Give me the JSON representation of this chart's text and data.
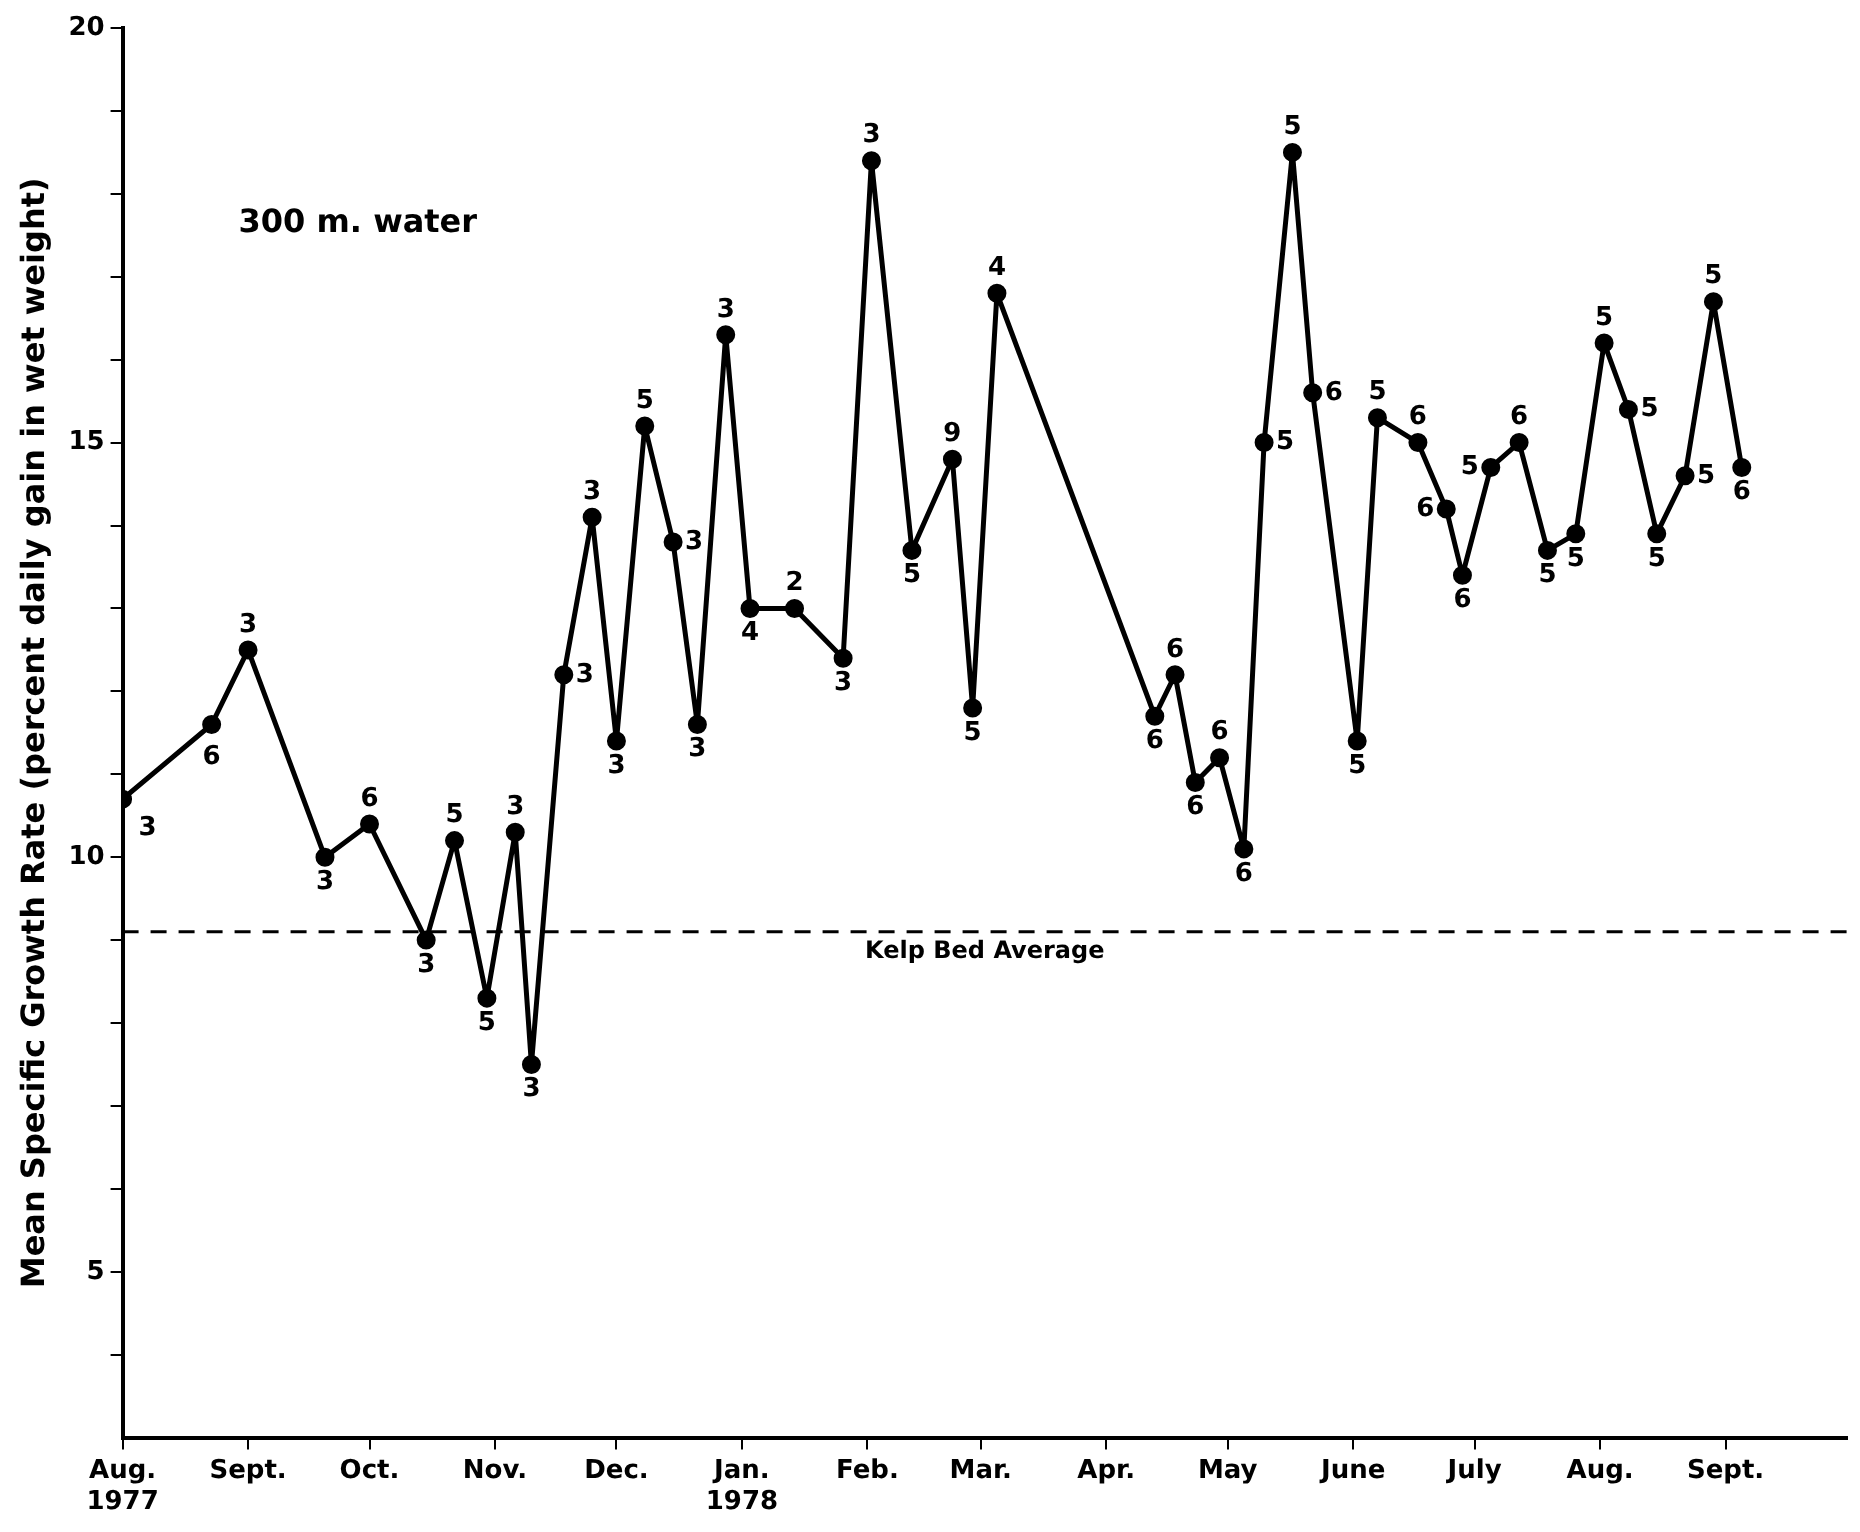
{
  "chart_data": {
    "type": "line",
    "ylabel": "Mean Specific Growth Rate (percent daily gain in wet weight)",
    "x": [
      "1977-08-01",
      "1977-08-23",
      "1977-09-01",
      "1977-09-20",
      "1977-10-01",
      "1977-10-15",
      "1977-10-22",
      "1977-10-30",
      "1977-11-06",
      "1977-11-10",
      "1977-11-18",
      "1977-11-25",
      "1977-12-01",
      "1977-12-08",
      "1977-12-15",
      "1977-12-21",
      "1977-12-28",
      "1978-01-03",
      "1978-01-14",
      "1978-01-26",
      "1978-02-02",
      "1978-02-12",
      "1978-02-22",
      "1978-02-27",
      "1978-03-05",
      "1978-04-13",
      "1978-04-18",
      "1978-04-23",
      "1978-04-29",
      "1978-05-05",
      "1978-05-10",
      "1978-05-17",
      "1978-05-22",
      "1978-06-02",
      "1978-06-07",
      "1978-06-17",
      "1978-06-24",
      "1978-06-28",
      "1978-07-05",
      "1978-07-12",
      "1978-07-19",
      "1978-07-26",
      "1978-08-02",
      "1978-08-08",
      "1978-08-15",
      "1978-08-22",
      "1978-08-29",
      "1978-09-05"
    ],
    "series": [
      {
        "color": "#000000",
        "values": [
          10.7,
          11.6,
          12.5,
          10.0,
          10.4,
          9.0,
          10.2,
          8.3,
          10.3,
          7.5,
          12.2,
          14.1,
          11.4,
          15.2,
          13.8,
          11.6,
          16.3,
          13.0,
          13.0,
          12.4,
          18.4,
          13.7,
          14.8,
          11.8,
          16.8,
          11.7,
          12.2,
          10.9,
          11.2,
          10.1,
          15.0,
          18.5,
          15.6,
          11.4,
          15.3,
          15.0,
          14.2,
          13.4,
          14.7,
          15.0,
          13.7,
          13.9,
          16.2,
          15.4,
          13.9,
          14.6,
          16.7,
          14.7
        ]
      }
    ],
    "annotations": [
      "300 m. water",
      {
        "text": "3",
        "x": "1977-08-01",
        "y": 10.7
      },
      {
        "text": "6",
        "x": "1977-08-23",
        "y": 11.6
      },
      {
        "text": "3",
        "x": "1977-09-01",
        "y": 12.5
      },
      {
        "text": "3",
        "x": "1977-09-20",
        "y": 10.0
      },
      {
        "text": "6",
        "x": "1977-10-01",
        "y": 10.4
      },
      {
        "text": "3",
        "x": "1977-10-15",
        "y": 9.0
      },
      {
        "text": "5",
        "x": "1977-10-22",
        "y": 10.2
      },
      {
        "text": "5",
        "x": "1977-10-30",
        "y": 8.3
      },
      {
        "text": "3",
        "x": "1977-11-06",
        "y": 10.3
      },
      {
        "text": "3",
        "x": "1977-11-10",
        "y": 7.5
      },
      {
        "text": "3",
        "x": "1977-11-18",
        "y": 12.2
      },
      {
        "text": "3",
        "x": "1977-11-25",
        "y": 14.1
      },
      {
        "text": "3",
        "x": "1977-12-01",
        "y": 11.4
      },
      {
        "text": "5",
        "x": "1977-12-08",
        "y": 15.2
      },
      {
        "text": "3",
        "x": "1977-12-15",
        "y": 13.8
      },
      {
        "text": "3",
        "x": "1977-12-21",
        "y": 11.6
      },
      {
        "text": "3",
        "x": "1977-12-28",
        "y": 16.3
      },
      {
        "text": "4",
        "x": "1978-01-03",
        "y": 13.0
      },
      {
        "text": "2",
        "x": "1978-01-14",
        "y": 13.0
      },
      {
        "text": "3",
        "x": "1978-01-26",
        "y": 12.4
      },
      {
        "text": "3",
        "x": "1978-02-02",
        "y": 18.4
      },
      {
        "text": "5",
        "x": "1978-02-12",
        "y": 13.7
      },
      {
        "text": "9",
        "x": "1978-02-22",
        "y": 14.8
      },
      {
        "text": "5",
        "x": "1978-02-27",
        "y": 11.8
      },
      {
        "text": "4",
        "x": "1978-03-05",
        "y": 16.8
      },
      {
        "text": "6",
        "x": "1978-04-13",
        "y": 11.7
      },
      {
        "text": "6",
        "x": "1978-04-18",
        "y": 12.2
      },
      {
        "text": "6",
        "x": "1978-04-23",
        "y": 10.9
      },
      {
        "text": "6",
        "x": "1978-04-29",
        "y": 11.2
      },
      {
        "text": "6",
        "x": "1978-05-05",
        "y": 10.1
      },
      {
        "text": "5",
        "x": "1978-05-10",
        "y": 15.0
      },
      {
        "text": "5",
        "x": "1978-05-17",
        "y": 18.5
      },
      {
        "text": "6",
        "x": "1978-05-22",
        "y": 15.6
      },
      {
        "text": "5",
        "x": "1978-06-02",
        "y": 11.4
      },
      {
        "text": "5",
        "x": "1978-06-07",
        "y": 15.3
      },
      {
        "text": "6",
        "x": "1978-06-17",
        "y": 15.0
      },
      {
        "text": "6",
        "x": "1978-06-24",
        "y": 14.2
      },
      {
        "text": "6",
        "x": "1978-06-28",
        "y": 13.4
      },
      {
        "text": "5",
        "x": "1978-07-05",
        "y": 14.7
      },
      {
        "text": "6",
        "x": "1978-07-12",
        "y": 15.0
      },
      {
        "text": "5",
        "x": "1978-07-19",
        "y": 13.7
      },
      {
        "text": "5",
        "x": "1978-07-26",
        "y": 13.9
      },
      {
        "text": "5",
        "x": "1978-08-02",
        "y": 16.2
      },
      {
        "text": "5",
        "x": "1978-08-08",
        "y": 15.4
      },
      {
        "text": "5",
        "x": "1978-08-15",
        "y": 13.9
      },
      {
        "text": "5",
        "x": "1978-08-22",
        "y": 14.6
      },
      {
        "text": "5",
        "x": "1978-08-29",
        "y": 16.7
      },
      {
        "text": "6",
        "x": "1978-09-05",
        "y": 14.7
      }
    ],
    "ref_lines": [
      {
        "axis": "y",
        "value": 9.1,
        "label": "Kelp Bed Average",
        "line_style": "dashed",
        "color": "#000000"
      }
    ],
    "xlim": [
      "1977-08-01",
      "1978-10-01"
    ],
    "xticks": [
      {
        "value": "1977-08-01",
        "label": "Aug.\n1977"
      },
      {
        "value": "1977-09-01",
        "label": "Sept."
      },
      {
        "value": "1977-10-01",
        "label": "Oct."
      },
      {
        "value": "1977-11-01",
        "label": "Nov."
      },
      {
        "value": "1977-12-01",
        "label": "Dec."
      },
      {
        "value": "1978-01-01",
        "label": "Jan.\n1978"
      },
      {
        "value": "1978-02-01",
        "label": "Feb."
      },
      {
        "value": "1978-03-01",
        "label": "Mar."
      },
      {
        "value": "1978-04-01",
        "label": "Apr."
      },
      {
        "value": "1978-05-01",
        "label": "May"
      },
      {
        "value": "1978-06-01",
        "label": "June"
      },
      {
        "value": "1978-07-01",
        "label": "July"
      },
      {
        "value": "1978-08-01",
        "label": "Aug."
      },
      {
        "value": "1978-09-01",
        "label": "Sept."
      }
    ],
    "ylim": [
      3,
      20
    ],
    "yticks": [
      {
        "value": 4,
        "label": null
      },
      5,
      {
        "value": 6,
        "label": null
      },
      {
        "value": 7,
        "label": null
      },
      {
        "value": 8,
        "label": null
      },
      {
        "value": 9,
        "label": null
      },
      10,
      {
        "value": 11,
        "label": null
      },
      {
        "value": 12,
        "label": null
      },
      {
        "value": 13,
        "label": null
      },
      {
        "value": 14,
        "label": null
      },
      15,
      {
        "value": 16,
        "label": null
      },
      {
        "value": 17,
        "label": null
      },
      {
        "value": 18,
        "label": null
      },
      {
        "value": 19,
        "label": null
      },
      20
    ],
    "grid": false,
    "legend": false,
    "marker": "circle",
    "line_style": "solid"
  }
}
